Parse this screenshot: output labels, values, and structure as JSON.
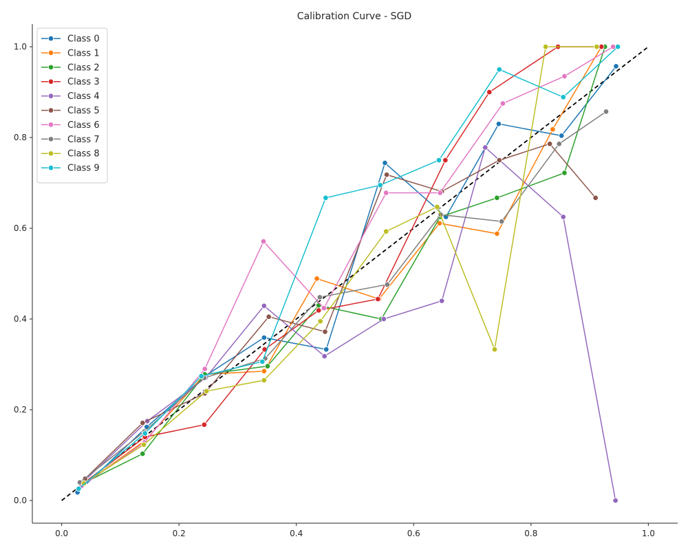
{
  "chart_data": {
    "type": "line",
    "title": "Calibration Curve - SGD",
    "xlabel": "",
    "ylabel": "",
    "xlim": [
      -0.05,
      1.05
    ],
    "ylim": [
      -0.05,
      1.05
    ],
    "x_ticks": [
      "0.0",
      "0.2",
      "0.4",
      "0.6",
      "0.8",
      "1.0"
    ],
    "y_ticks": [
      "0.0",
      "0.2",
      "0.4",
      "0.6",
      "0.8",
      "1.0"
    ],
    "grid": false,
    "legend_position": "upper-left",
    "reference_line": {
      "style": "dashed",
      "color": "#000000",
      "from": [
        0,
        0
      ],
      "to": [
        1,
        1
      ]
    },
    "series": [
      {
        "name": "Class 0",
        "color": "#1f77b4",
        "x": [
          0.027,
          0.145,
          0.245,
          0.345,
          0.451,
          0.551,
          0.655,
          0.745,
          0.852,
          0.945
        ],
        "y": [
          0.018,
          0.162,
          0.275,
          0.359,
          0.333,
          0.744,
          0.625,
          0.83,
          0.804,
          0.957
        ]
      },
      {
        "name": "Class 1",
        "color": "#ff7f0e",
        "x": [
          0.032,
          0.142,
          0.244,
          0.345,
          0.435,
          0.541,
          0.644,
          0.742,
          0.837,
          0.92
        ],
        "y": [
          0.03,
          0.132,
          0.278,
          0.285,
          0.489,
          0.444,
          0.611,
          0.588,
          0.818,
          1.0
        ]
      },
      {
        "name": "Class 2",
        "color": "#2ca02c",
        "x": [
          0.034,
          0.138,
          0.244,
          0.351,
          0.438,
          0.545,
          0.645,
          0.742,
          0.857,
          0.926
        ],
        "y": [
          0.036,
          0.103,
          0.278,
          0.296,
          0.43,
          0.4,
          0.625,
          0.667,
          0.722,
          1.0
        ]
      },
      {
        "name": "Class 3",
        "color": "#d62728",
        "x": [
          0.035,
          0.142,
          0.243,
          0.346,
          0.438,
          0.539,
          0.654,
          0.729,
          0.846,
          0.92
        ],
        "y": [
          0.036,
          0.14,
          0.167,
          0.333,
          0.419,
          0.444,
          0.75,
          0.9,
          1.0,
          1.0
        ]
      },
      {
        "name": "Class 4",
        "color": "#9467bd",
        "x": [
          0.036,
          0.146,
          0.245,
          0.345,
          0.448,
          0.549,
          0.648,
          0.722,
          0.855,
          0.944
        ],
        "y": [
          0.04,
          0.175,
          0.27,
          0.429,
          0.318,
          0.4,
          0.44,
          0.778,
          0.625,
          0.0
        ]
      },
      {
        "name": "Class 5",
        "color": "#8c564b",
        "x": [
          0.04,
          0.138,
          0.244,
          0.353,
          0.449,
          0.554,
          0.648,
          0.746,
          0.832,
          0.91
        ],
        "y": [
          0.048,
          0.171,
          0.236,
          0.405,
          0.372,
          0.718,
          0.681,
          0.75,
          0.786,
          0.667
        ]
      },
      {
        "name": "Class 6",
        "color": "#e377c2",
        "x": [
          0.034,
          0.141,
          0.244,
          0.344,
          0.447,
          0.553,
          0.645,
          0.752,
          0.857,
          0.94
        ],
        "y": [
          0.032,
          0.128,
          0.29,
          0.571,
          0.424,
          0.678,
          0.678,
          0.875,
          0.935,
          1.0
        ]
      },
      {
        "name": "Class 7",
        "color": "#7f7f7f",
        "x": [
          0.031,
          0.141,
          0.243,
          0.347,
          0.44,
          0.555,
          0.646,
          0.75,
          0.848,
          0.928
        ],
        "y": [
          0.04,
          0.152,
          0.27,
          0.313,
          0.448,
          0.476,
          0.63,
          0.615,
          0.786,
          0.857
        ]
      },
      {
        "name": "Class 8",
        "color": "#bcbd22",
        "x": [
          0.038,
          0.14,
          0.247,
          0.345,
          0.441,
          0.553,
          0.64,
          0.738,
          0.825,
          0.912
        ],
        "y": [
          0.038,
          0.123,
          0.241,
          0.265,
          0.395,
          0.593,
          0.647,
          0.333,
          1.0,
          1.0
        ]
      },
      {
        "name": "Class 9",
        "color": "#17becf",
        "x": [
          0.029,
          0.142,
          0.238,
          0.342,
          0.45,
          0.543,
          0.643,
          0.746,
          0.855,
          0.948
        ],
        "y": [
          0.026,
          0.148,
          0.274,
          0.306,
          0.667,
          0.695,
          0.75,
          0.95,
          0.889,
          1.0
        ]
      }
    ]
  }
}
